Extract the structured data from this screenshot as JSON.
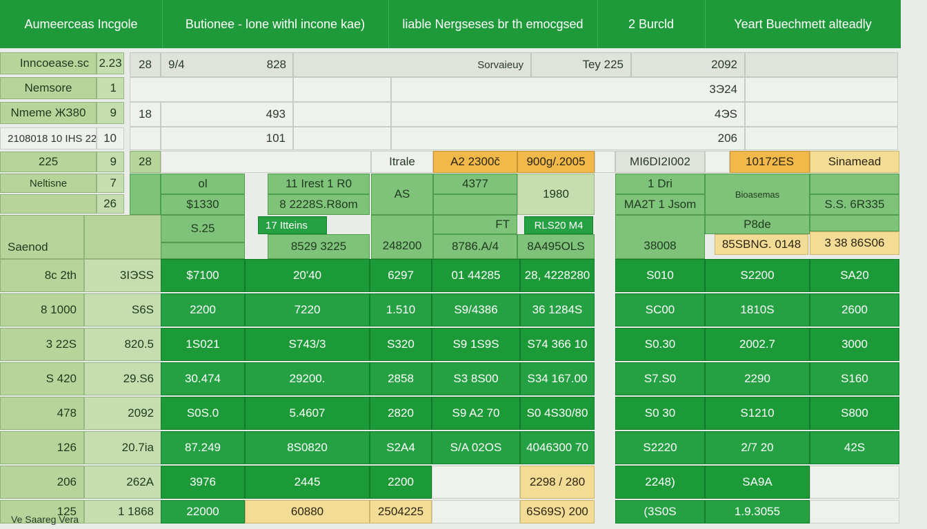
{
  "header": {
    "cells": [
      "Aumeerceas Incgole",
      "Butionee - lone withl incone kae)",
      "liable Nergseses br th emocgsed",
      "2 Burcld",
      "Yeart Buechmett alteadly"
    ]
  },
  "top_left": {
    "rows": [
      {
        "label": "Inncoease.sc",
        "value": "2.23"
      },
      {
        "label": "Nemsore",
        "value": "1"
      },
      {
        "label": "Nmeme ЖЗ80",
        "value": "9"
      },
      {
        "label": "2108018 10 IHS 222.0nl",
        "value": "10"
      },
      {
        "label": "225",
        "value": "9"
      },
      {
        "label": "Neltisne",
        "value": "7"
      },
      {
        "label": "",
        "value": "26"
      }
    ]
  },
  "top_grid": {
    "r1": [
      "28",
      "9/4",
      "828",
      "Sorvaieuy",
      "Tey 225",
      "2092"
    ],
    "r2": [
      "3Э24"
    ],
    "r3": [
      "18",
      "493",
      "4ЭS"
    ],
    "r4": [
      "101",
      "206"
    ],
    "r5": [
      "28",
      "Itrale",
      "A2 2300č",
      "900ɡ/.2005",
      "MI6DI2I002",
      "10172ES",
      "Sinamead"
    ]
  },
  "mid": {
    "sub_left": "Saenod",
    "r1": [
      "ol",
      "11 Irest 1 R0",
      "AS",
      "4377",
      "1980",
      "1 Dri",
      "Bioasemas",
      ""
    ],
    "r2": [
      "$1330",
      "8 2228S.R8om",
      "MA2T 1 Jsom",
      "S.S. 6R335"
    ],
    "r3": [
      "S.25",
      "17 Itteins",
      "FT",
      "RLS20 M4",
      "P8de"
    ],
    "r4": [
      "8529 3225",
      "248200",
      "8786.A/4",
      "8A495OLS",
      "38008",
      "85SBNG. 0148",
      "3 38 86S06"
    ]
  },
  "body_rows": [
    [
      "8c   2th",
      "3IЭSS",
      "$7100",
      "20'40",
      "6297",
      "01 44285",
      "28, 4228280",
      "S010",
      "S2200",
      "SA20"
    ],
    [
      "8   1000",
      "S6S",
      "2200",
      "7220",
      "1.510",
      "S9/4386",
      "36 1284S",
      "SC00",
      "1810S",
      "2600"
    ],
    [
      "3   22S",
      "820.5",
      "1S021",
      "S743/3",
      "S320",
      "S9 1S9S",
      "S74 366 10",
      "S0.30",
      "2002.7",
      "3000"
    ],
    [
      "S   420",
      "29.S6",
      "30.474",
      "29200.",
      "2858",
      "S3 8S00",
      "S34 167.00",
      "S7.S0",
      "2290",
      "S160"
    ],
    [
      "478",
      "2092",
      "S0S.0",
      "5.4607",
      "2820",
      "S9 A2 70",
      "S0 4S30/80",
      "S0 30",
      "S1210",
      "S800"
    ],
    [
      "126",
      "20.7ia",
      "87.249",
      "8S0820",
      "S2A4",
      "S/A 02OS",
      "4046300 70",
      "S2220",
      "2/7 20",
      "42S"
    ],
    [
      "206",
      "262A",
      "3976",
      "2445",
      "2200",
      "",
      "2298 / 280",
      "2248)",
      "SA9A",
      ""
    ],
    [
      "125",
      "1 1868",
      "22000",
      "60880",
      "2504225",
      "",
      "6S69S) 200",
      "(3S0S",
      "1.9.3055",
      ""
    ]
  ],
  "footer_note": "Ve Saareg Vera"
}
